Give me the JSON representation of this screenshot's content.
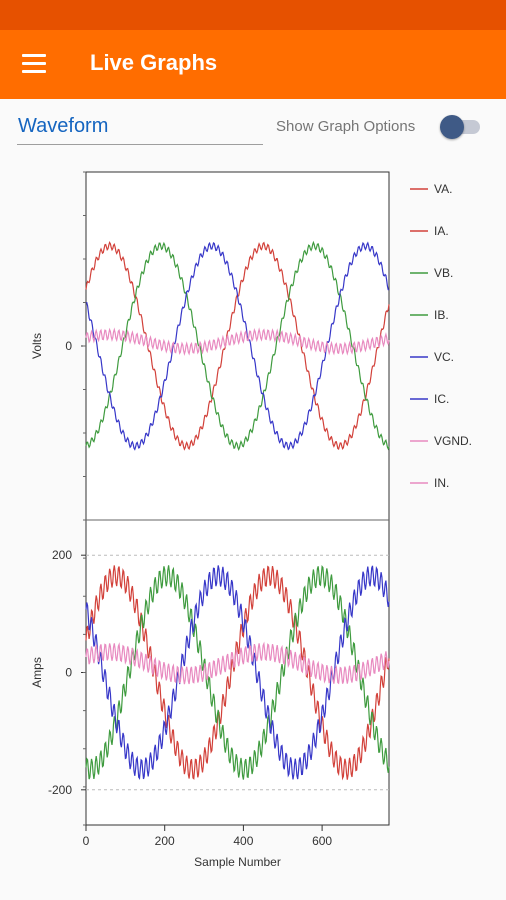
{
  "app_bar": {
    "title": "Live Graphs",
    "menu_icon": "menu-icon"
  },
  "selector": {
    "value": "Waveform"
  },
  "options": {
    "label": "Show Graph Options",
    "enabled": true
  },
  "colors": {
    "appbar": "#ff6d00",
    "statusbar": "#e65100",
    "A": "#d2413a",
    "B": "#3f9b3f",
    "C": "#3737c8",
    "N": "#e88ac0"
  },
  "chart_data": [
    {
      "type": "line",
      "ylabel": "Volts",
      "xlabel": "",
      "xlim": [
        0,
        770
      ],
      "ylim": [
        -200,
        200
      ],
      "yticks": [
        0
      ],
      "grid": false,
      "legend": "right",
      "series": [
        {
          "name": "VA.",
          "color": "#d2413a",
          "amplitude": 115,
          "phase_deg": 0,
          "offset": 0,
          "ripple": 4,
          "period": 390
        },
        {
          "name": "IA.",
          "color": "#d2413a",
          "amplitude": 0,
          "phase_deg": 0,
          "offset": 0,
          "ripple": 0,
          "period": 390
        },
        {
          "name": "VB.",
          "color": "#3f9b3f",
          "amplitude": 115,
          "phase_deg": -120,
          "offset": 0,
          "ripple": 4,
          "period": 390
        },
        {
          "name": "IB.",
          "color": "#3f9b3f",
          "amplitude": 0,
          "phase_deg": 0,
          "offset": 0,
          "ripple": 0,
          "period": 390
        },
        {
          "name": "VC.",
          "color": "#3737c8",
          "amplitude": 115,
          "phase_deg": 120,
          "offset": 0,
          "ripple": 4,
          "period": 390
        },
        {
          "name": "IC.",
          "color": "#3737c8",
          "amplitude": 0,
          "phase_deg": 0,
          "offset": 0,
          "ripple": 0,
          "period": 390
        },
        {
          "name": "VGND.",
          "color": "#e88ac0",
          "amplitude": 8,
          "phase_deg": 0,
          "offset": 5,
          "ripple": 6,
          "period": 390
        },
        {
          "name": "IN.",
          "color": "#e88ac0",
          "amplitude": 0,
          "phase_deg": 0,
          "offset": 0,
          "ripple": 0,
          "period": 390
        }
      ]
    },
    {
      "type": "line",
      "xlabel": "Sample Number",
      "ylabel": "Amps",
      "xlim": [
        0,
        770
      ],
      "ylim": [
        -260,
        260
      ],
      "xticks": [
        0,
        200,
        400,
        600
      ],
      "yticks": [
        200,
        0,
        -200
      ],
      "grid": true,
      "series": [
        {
          "name": "IA",
          "color": "#d2413a",
          "amplitude": 165,
          "phase_deg": -15,
          "offset": 0,
          "ripple": 18,
          "period": 390
        },
        {
          "name": "IB",
          "color": "#3f9b3f",
          "amplitude": 165,
          "phase_deg": -135,
          "offset": 0,
          "ripple": 18,
          "period": 390
        },
        {
          "name": "IC",
          "color": "#3737c8",
          "amplitude": 165,
          "phase_deg": 105,
          "offset": 0,
          "ripple": 18,
          "period": 390
        },
        {
          "name": "IN",
          "color": "#e88ac0",
          "amplitude": 20,
          "phase_deg": 0,
          "offset": 15,
          "ripple": 15,
          "period": 390
        }
      ]
    }
  ]
}
